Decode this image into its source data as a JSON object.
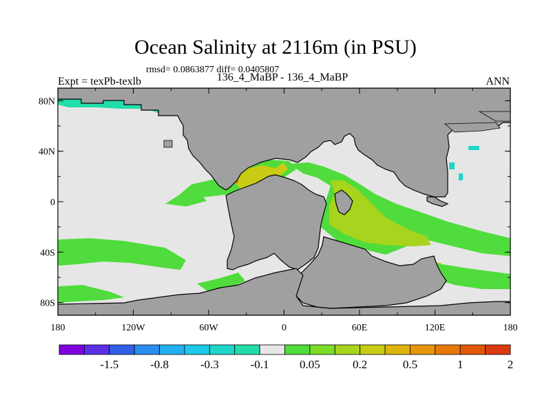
{
  "title": "Ocean Salinity at 2116m (in PSU)",
  "stats": "rmsd= 0.0863877 diff= 0.0405807",
  "experiment": "Expt = texPb-texlb",
  "run": "136_4_MaBP - 136_4_MaBP",
  "season": "ANN",
  "map": {
    "lon_range": [
      -180,
      180
    ],
    "lat_range": [
      -90,
      90
    ],
    "lat_ticks": [
      {
        "value": 80,
        "label": "80N"
      },
      {
        "value": 40,
        "label": "40N"
      },
      {
        "value": 0,
        "label": "0"
      },
      {
        "value": -40,
        "label": "40S"
      },
      {
        "value": -80,
        "label": "80S"
      }
    ],
    "lon_ticks": [
      {
        "value": -180,
        "label": "180"
      },
      {
        "value": -120,
        "label": "120W"
      },
      {
        "value": -60,
        "label": "60W"
      },
      {
        "value": 0,
        "label": "0"
      },
      {
        "value": 60,
        "label": "60E"
      },
      {
        "value": 120,
        "label": "120E"
      },
      {
        "value": 180,
        "label": "180"
      }
    ],
    "land_color": "#a0a0a0",
    "ocean_background": "#e6e6e6"
  },
  "colorbar": {
    "colors": [
      "#8000e0",
      "#5a2fe6",
      "#2f5fe6",
      "#2a8ef0",
      "#23b0f0",
      "#1ec8e8",
      "#1ed6c8",
      "#22dcaa",
      "#e6e6e6",
      "#50dc3c",
      "#7ddc28",
      "#a8d41e",
      "#c8cc14",
      "#dcb40c",
      "#e69608",
      "#e67808",
      "#e05808",
      "#dc3a10"
    ],
    "labels": [
      "-1.5",
      "-0.8",
      "-0.3",
      "-0.1",
      "0.05",
      "0.2",
      "0.5",
      "1",
      "2"
    ]
  }
}
